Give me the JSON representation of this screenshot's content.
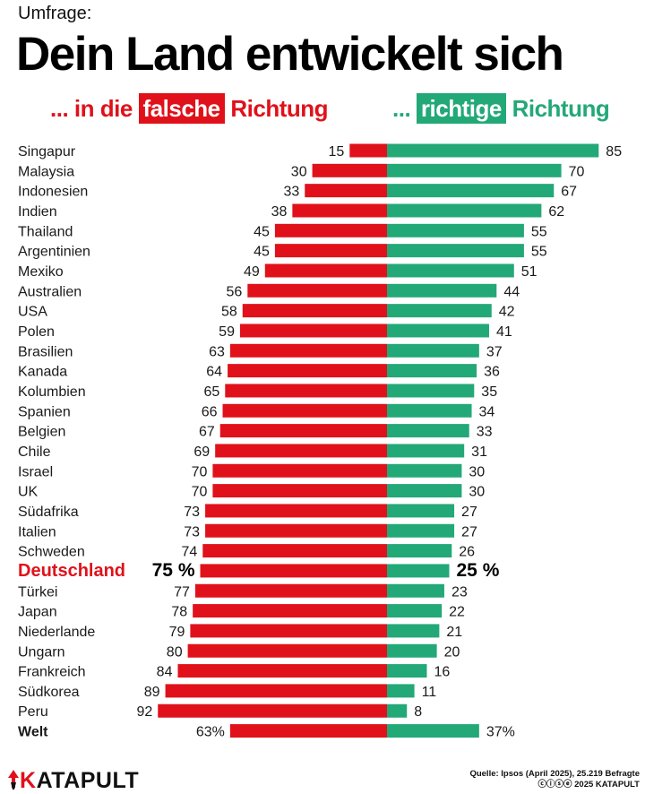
{
  "header": {
    "kicker": "Umfrage:",
    "title": "Dein Land entwickelt sich",
    "legend_wrong_prefix": "... in die",
    "legend_wrong_box": "falsche",
    "legend_wrong_suffix": "Richtung",
    "legend_right_prefix": "...",
    "legend_right_box": "richtige",
    "legend_right_suffix": "Richtung"
  },
  "colors": {
    "wrong": "#e0111a",
    "right": "#23a878",
    "highlight": "#e0111a"
  },
  "chart_data": {
    "type": "bar",
    "orientation": "horizontal-diverging",
    "title": "Dein Land entwickelt sich",
    "xlim": [
      0,
      100
    ],
    "series": [
      {
        "name": "falsche Richtung",
        "values": [
          15,
          30,
          33,
          38,
          45,
          45,
          49,
          56,
          58,
          59,
          63,
          64,
          65,
          66,
          67,
          69,
          70,
          70,
          73,
          73,
          74,
          75,
          77,
          78,
          79,
          80,
          84,
          89,
          92,
          63
        ]
      },
      {
        "name": "richtige Richtung",
        "values": [
          85,
          70,
          67,
          62,
          55,
          55,
          51,
          44,
          42,
          41,
          37,
          36,
          35,
          34,
          33,
          31,
          30,
          30,
          27,
          27,
          26,
          25,
          23,
          22,
          21,
          20,
          16,
          11,
          8,
          37
        ]
      }
    ],
    "categories": [
      "Singapur",
      "Malaysia",
      "Indonesien",
      "Indien",
      "Thailand",
      "Argentinien",
      "Mexiko",
      "Australien",
      "USA",
      "Polen",
      "Brasilien",
      "Kanada",
      "Kolumbien",
      "Spanien",
      "Belgien",
      "Chile",
      "Israel",
      "UK",
      "Südafrika",
      "Italien",
      "Schweden",
      "Deutschland",
      "Türkei",
      "Japan",
      "Niederlande",
      "Ungarn",
      "Frankreich",
      "Südkorea",
      "Peru",
      "Welt"
    ],
    "value_labels_wrong": [
      "15",
      "30",
      "33",
      "38",
      "45",
      "45",
      "49",
      "56",
      "58",
      "59",
      "63",
      "64",
      "65",
      "66",
      "67",
      "69",
      "70",
      "70",
      "73",
      "73",
      "74",
      "75 %",
      "77",
      "78",
      "79",
      "80",
      "84",
      "89",
      "92",
      "63%"
    ],
    "value_labels_right": [
      "85",
      "70",
      "67",
      "62",
      "55",
      "55",
      "51",
      "44",
      "42",
      "41",
      "37",
      "36",
      "35",
      "34",
      "33",
      "31",
      "30",
      "30",
      "27",
      "27",
      "26",
      "25 %",
      "23",
      "22",
      "21",
      "20",
      "16",
      "11",
      "8",
      "37%"
    ],
    "highlight_category": "Deutschland",
    "summary_category": "Welt",
    "grid": false
  },
  "footer": {
    "logo_k": "K",
    "logo_rest": "ATAPULT",
    "source_line1": "Quelle: Ipsos (April 2025), 25.219 Befragte",
    "source_line2": "ⓒⓘⓢⓔ 2025 KATAPULT"
  }
}
